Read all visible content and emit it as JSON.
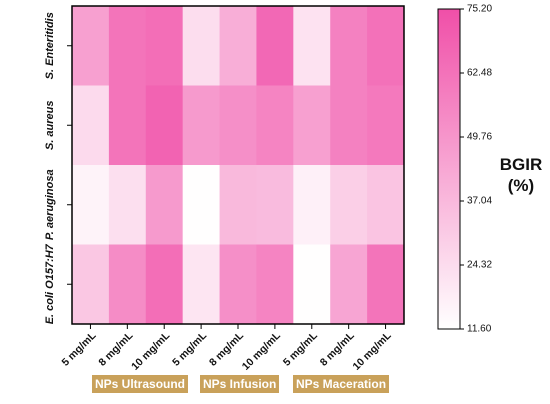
{
  "chart_data": {
    "type": "heatmap",
    "rows": [
      "S. Enteritidis",
      "S. aureus",
      "P. aeruginosa",
      "E. coli O157:H7"
    ],
    "columns": [
      "5 mg/mL",
      "8 mg/mL",
      "10 mg/mL",
      "5 mg/mL",
      "8 mg/mL",
      "10 mg/mL",
      "5 mg/mL",
      "8 mg/mL",
      "10 mg/mL"
    ],
    "groups": [
      {
        "label": "NPs Ultrasound",
        "columns": [
          0,
          1,
          2
        ]
      },
      {
        "label": "NPs Infusion",
        "columns": [
          3,
          4,
          5
        ]
      },
      {
        "label": "NPs Maceration",
        "columns": [
          6,
          7,
          8
        ]
      }
    ],
    "values": [
      [
        46,
        62,
        64,
        24,
        41,
        66,
        22,
        57,
        63
      ],
      [
        25,
        62,
        68,
        48,
        52,
        56,
        46,
        57,
        60
      ],
      [
        16,
        23,
        48,
        12,
        37,
        36,
        17,
        29,
        33
      ],
      [
        32,
        53,
        64,
        21,
        52,
        56,
        12,
        44,
        62
      ]
    ],
    "colorbar": {
      "title_line1": "BGIR",
      "title_line2": "(%)",
      "min": 11.6,
      "max": 75.2,
      "ticks": [
        "75.20",
        "62.48",
        "49.76",
        "37.04",
        "24.32",
        "11.60"
      ],
      "color_low": "#ffffff",
      "color_high": "#f04fa8"
    }
  }
}
